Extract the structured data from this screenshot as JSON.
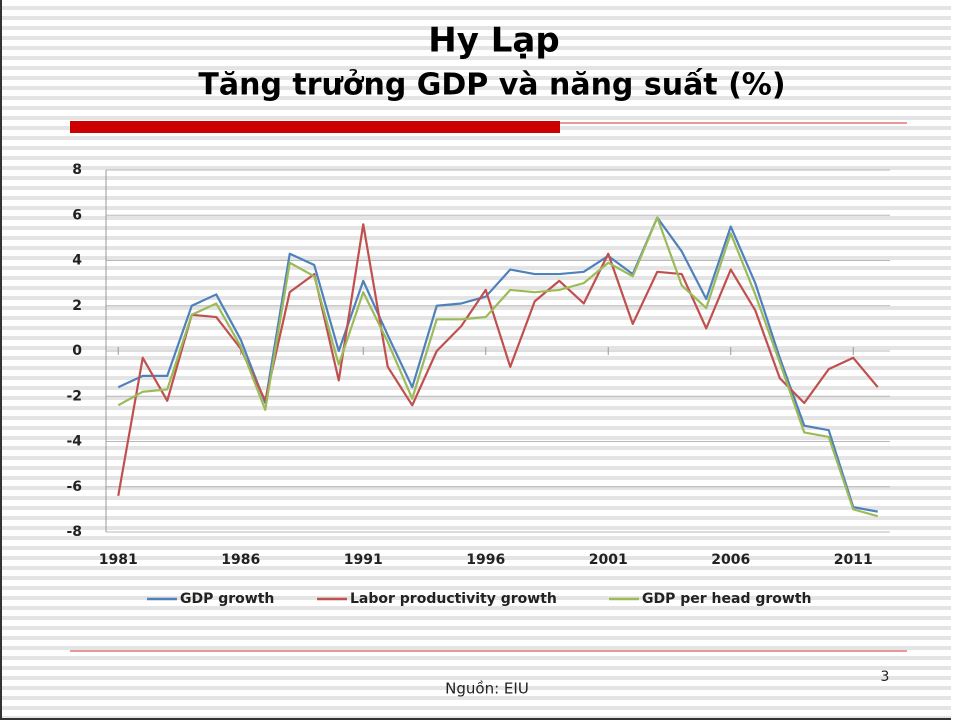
{
  "slide": {
    "title": "Hy Lạp",
    "subtitle": "Tăng trưởng GDP và năng suất (%)",
    "source": "Nguồn: EIU",
    "page_number": 3
  },
  "chart_data": {
    "type": "line",
    "x": [
      1981,
      1982,
      1983,
      1984,
      1985,
      1986,
      1987,
      1988,
      1989,
      1990,
      1991,
      1992,
      1993,
      1994,
      1995,
      1996,
      1997,
      1998,
      1999,
      2000,
      2001,
      2002,
      2003,
      2004,
      2005,
      2006,
      2007,
      2008,
      2009,
      2010,
      2011,
      2012
    ],
    "xlim": [
      1980.5,
      2012.5
    ],
    "xticks": [
      1981,
      1986,
      1991,
      1996,
      2001,
      2006,
      2011
    ],
    "ylim": [
      -8,
      8
    ],
    "yticks": [
      -8,
      -6,
      -4,
      -2,
      0,
      2,
      4,
      6,
      8
    ],
    "grid": true,
    "legend": "bottom",
    "series": [
      {
        "name": "GDP growth",
        "color": "#4f81bd",
        "values": [
          -1.6,
          -1.1,
          -1.1,
          2.0,
          2.5,
          0.5,
          -2.3,
          4.3,
          3.8,
          0.0,
          3.1,
          0.7,
          -1.6,
          2.0,
          2.1,
          2.4,
          3.6,
          3.4,
          3.4,
          3.5,
          4.2,
          3.4,
          5.9,
          4.4,
          2.3,
          5.5,
          3.0,
          -0.3,
          -3.3,
          -3.5,
          -6.9,
          -7.1
        ]
      },
      {
        "name": "Labor productivity growth",
        "color": "#c0504d",
        "values": [
          -6.4,
          -0.3,
          -2.2,
          1.6,
          1.5,
          0.1,
          -2.2,
          2.6,
          3.4,
          -1.3,
          5.6,
          -0.7,
          -2.4,
          0.0,
          1.1,
          2.7,
          -0.7,
          2.2,
          3.1,
          2.1,
          4.3,
          1.2,
          3.5,
          3.4,
          1.0,
          3.6,
          1.8,
          -1.2,
          -2.3,
          -0.8,
          -0.3,
          -1.6
        ]
      },
      {
        "name": "GDP per head growth",
        "color": "#9bbb59",
        "values": [
          -2.4,
          -1.8,
          -1.7,
          1.6,
          2.1,
          0.2,
          -2.6,
          3.9,
          3.3,
          -0.6,
          2.6,
          0.4,
          -2.1,
          1.4,
          1.4,
          1.5,
          2.7,
          2.6,
          2.7,
          3.0,
          3.9,
          3.3,
          5.9,
          2.9,
          1.9,
          5.2,
          2.5,
          -0.5,
          -3.6,
          -3.8,
          -7.0,
          -7.3
        ]
      }
    ]
  }
}
